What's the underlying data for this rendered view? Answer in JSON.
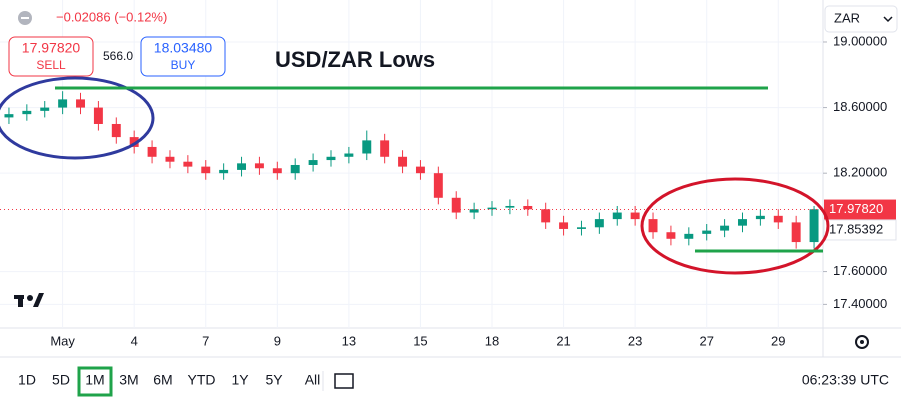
{
  "chart_data": {
    "type": "candlestick",
    "title": "USD/ZAR Lows",
    "categories": [
      null,
      null,
      null,
      "May",
      null,
      null,
      null,
      "4",
      null,
      null,
      null,
      "7",
      null,
      null,
      null,
      "9",
      null,
      null,
      null,
      "13",
      null,
      null,
      null,
      "15",
      null,
      null,
      null,
      "18",
      null,
      null,
      null,
      "21",
      null,
      null,
      null,
      "23",
      null,
      null,
      null,
      "27",
      null,
      null,
      null,
      "29",
      null,
      null
    ],
    "open": [
      18.54,
      18.56,
      18.58,
      18.6,
      18.65,
      18.6,
      18.5,
      18.42,
      18.36,
      18.3,
      18.27,
      18.24,
      18.2,
      18.22,
      18.26,
      18.23,
      18.2,
      18.25,
      18.28,
      18.3,
      18.32,
      18.4,
      18.3,
      18.24,
      18.2,
      18.05,
      17.96,
      17.98,
      17.99,
      18.0,
      17.98,
      17.9,
      17.86,
      17.87,
      17.92,
      17.96,
      17.92,
      17.84,
      17.8,
      17.83,
      17.85,
      17.88,
      17.92,
      17.94,
      17.9,
      17.78
    ],
    "high": [
      18.6,
      18.62,
      18.64,
      18.7,
      18.69,
      18.64,
      18.54,
      18.46,
      18.4,
      18.34,
      18.31,
      18.28,
      18.26,
      18.3,
      18.3,
      18.27,
      18.29,
      18.32,
      18.34,
      18.36,
      18.46,
      18.44,
      18.34,
      18.28,
      18.24,
      18.09,
      18.02,
      18.03,
      18.04,
      18.04,
      18.02,
      17.94,
      17.91,
      17.96,
      18.0,
      18.0,
      17.96,
      17.88,
      17.87,
      17.89,
      17.92,
      17.96,
      17.98,
      17.98,
      17.94,
      18.0
    ],
    "low": [
      18.5,
      18.52,
      18.54,
      18.56,
      18.56,
      18.46,
      18.38,
      18.32,
      18.26,
      18.23,
      18.2,
      18.16,
      18.16,
      18.18,
      18.19,
      18.16,
      18.16,
      18.21,
      18.24,
      18.26,
      18.28,
      18.26,
      18.2,
      18.16,
      18.01,
      17.92,
      17.92,
      17.94,
      17.95,
      17.94,
      17.86,
      17.82,
      17.82,
      17.83,
      17.88,
      17.88,
      17.8,
      17.76,
      17.76,
      17.79,
      17.81,
      17.84,
      17.88,
      17.86,
      17.74,
      17.74
    ],
    "close": [
      18.56,
      18.58,
      18.6,
      18.65,
      18.6,
      18.5,
      18.42,
      18.36,
      18.3,
      18.27,
      18.24,
      18.2,
      18.22,
      18.26,
      18.23,
      18.2,
      18.25,
      18.28,
      18.3,
      18.32,
      18.4,
      18.3,
      18.24,
      18.2,
      18.05,
      17.96,
      17.98,
      17.99,
      18.0,
      17.98,
      17.9,
      17.86,
      17.87,
      17.92,
      17.96,
      17.92,
      17.84,
      17.8,
      17.83,
      17.85,
      17.88,
      17.92,
      17.94,
      17.9,
      17.78,
      17.98
    ],
    "up_color": "#089981",
    "down_color": "#f23645",
    "ylim": [
      17.256,
      19.256
    ],
    "yticks": [
      {
        "value": 17.4,
        "label": "17.40000"
      },
      {
        "value": 17.6,
        "label": "17.60000"
      },
      {
        "value": 18.2,
        "label": "18.20000"
      },
      {
        "value": 18.6,
        "label": "18.60000"
      },
      {
        "value": 19.0,
        "label": "19.00000"
      }
    ],
    "grid": true,
    "last_price": {
      "value": 17.9782,
      "label": "17.97820"
    },
    "marker_price": {
      "value": 17.85392,
      "label": "17.85392"
    }
  },
  "header": {
    "change": "−0.02086 (−0.12%)",
    "sell_price": "17.97820",
    "sell_label": "SELL",
    "spread": "566.0",
    "buy_price": "18.03480",
    "buy_label": "BUY",
    "currency": "ZAR"
  },
  "toolbar": {
    "ranges": [
      "1D",
      "5D",
      "1M",
      "3M",
      "6M",
      "YTD",
      "1Y",
      "5Y",
      "All"
    ],
    "active_range": "1M",
    "time": "06:23:39 UTC"
  }
}
